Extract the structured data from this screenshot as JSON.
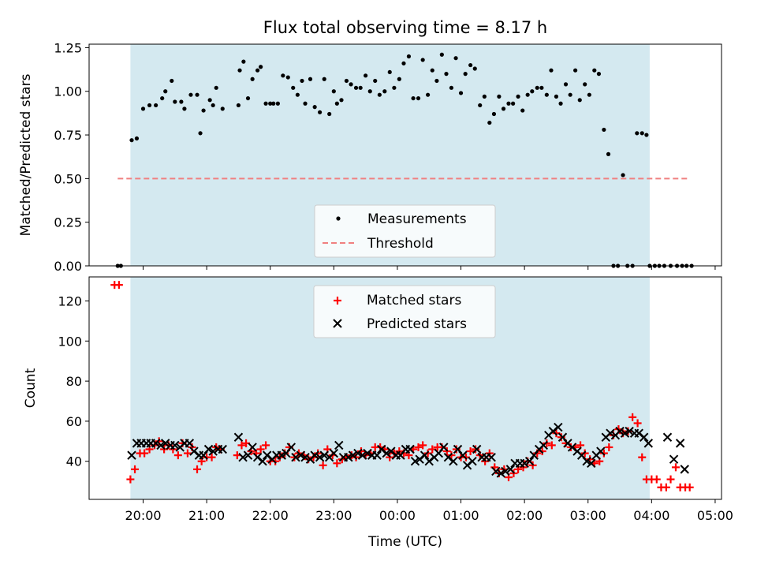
{
  "chart_data": [
    {
      "type": "scatter",
      "title": "Flux total observing time = 8.17 h",
      "ylabel": "Matched/Predicted stars",
      "ylim": [
        0,
        1.27
      ],
      "yticks": [
        0.0,
        0.25,
        0.5,
        0.75,
        1.0,
        1.25
      ],
      "ytick_labels": [
        "0.00",
        "0.25",
        "0.50",
        "0.75",
        "1.00",
        "1.25"
      ],
      "xlim_hours": [
        19.15,
        29.1
      ],
      "shaded_span_hours": [
        19.8,
        27.97
      ],
      "shade_color": "#d2e8ef",
      "legend_position": "lower center",
      "series": [
        {
          "name": "Measurements",
          "marker": "dot",
          "color": "#000000",
          "x": [
            19.6,
            19.65,
            19.82,
            19.9,
            20.0,
            20.1,
            20.2,
            20.3,
            20.35,
            20.45,
            20.5,
            20.6,
            20.65,
            20.75,
            20.85,
            20.9,
            20.95,
            21.05,
            21.1,
            21.15,
            21.25,
            21.5,
            21.52,
            21.58,
            21.65,
            21.72,
            21.8,
            21.85,
            21.93,
            22.0,
            22.05,
            22.12,
            22.2,
            22.28,
            22.36,
            22.43,
            22.5,
            22.55,
            22.63,
            22.7,
            22.78,
            22.85,
            22.93,
            23.0,
            23.05,
            23.12,
            23.2,
            23.27,
            23.35,
            23.42,
            23.5,
            23.57,
            23.65,
            23.72,
            23.8,
            23.88,
            23.95,
            24.03,
            24.1,
            24.18,
            24.25,
            24.33,
            24.4,
            24.48,
            24.55,
            24.62,
            24.7,
            24.77,
            24.85,
            24.92,
            25.0,
            25.07,
            25.15,
            25.22,
            25.3,
            25.37,
            25.45,
            25.52,
            25.6,
            25.67,
            25.75,
            25.82,
            25.9,
            25.97,
            26.05,
            26.12,
            26.2,
            26.27,
            26.35,
            26.42,
            26.5,
            26.57,
            26.65,
            26.72,
            26.8,
            26.87,
            26.95,
            27.02,
            27.1,
            27.17,
            27.25,
            27.32,
            27.4,
            27.47,
            27.55,
            27.62,
            27.7,
            27.77,
            27.85,
            27.92,
            27.97,
            28.05,
            28.12,
            28.2,
            28.3,
            28.4,
            28.48,
            28.55,
            28.63
          ],
          "y": [
            0.0,
            0.0,
            0.72,
            0.73,
            0.9,
            0.92,
            0.92,
            0.96,
            1.0,
            1.06,
            0.94,
            0.94,
            0.9,
            0.98,
            0.98,
            0.76,
            0.89,
            0.95,
            0.92,
            1.02,
            0.9,
            0.92,
            1.12,
            1.17,
            0.96,
            1.07,
            1.12,
            1.14,
            0.93,
            0.93,
            0.93,
            0.93,
            1.09,
            1.08,
            1.02,
            0.98,
            1.06,
            0.93,
            1.07,
            0.91,
            0.88,
            1.07,
            0.87,
            1.0,
            0.93,
            0.95,
            1.06,
            1.04,
            1.02,
            1.02,
            1.09,
            1.0,
            1.06,
            0.98,
            1.0,
            1.11,
            1.02,
            1.07,
            1.16,
            1.2,
            0.96,
            0.96,
            1.18,
            0.98,
            1.12,
            1.06,
            1.21,
            1.1,
            1.02,
            1.19,
            0.99,
            1.1,
            1.15,
            1.13,
            0.92,
            0.97,
            0.82,
            0.87,
            0.97,
            0.9,
            0.93,
            0.93,
            0.97,
            0.89,
            0.98,
            1.0,
            1.02,
            1.02,
            0.98,
            1.12,
            0.97,
            0.93,
            1.04,
            0.98,
            1.12,
            0.95,
            1.04,
            0.98,
            1.12,
            1.1,
            0.78,
            0.64,
            0.0,
            0.0,
            0.52,
            0.0,
            0.0,
            0.76,
            0.76,
            0.75,
            0.0,
            0.0,
            0.0,
            0.0,
            0.0,
            0.0,
            0.0,
            0.0,
            0.0
          ]
        },
        {
          "name": "Threshold",
          "marker": "dashed-line",
          "color": "#f08080",
          "x": [
            19.6,
            28.6
          ],
          "y": [
            0.5,
            0.5
          ]
        }
      ]
    },
    {
      "type": "scatter",
      "ylabel": "Count",
      "xlabel": "Time (UTC)",
      "ylim": [
        21,
        132
      ],
      "yticks": [
        40,
        60,
        80,
        100,
        120
      ],
      "ytick_labels": [
        "40",
        "60",
        "80",
        "100",
        "120"
      ],
      "xlim_hours": [
        19.15,
        29.1
      ],
      "xticks_hours": [
        20,
        21,
        22,
        23,
        24,
        25,
        26,
        27,
        28,
        29
      ],
      "xtick_labels": [
        "20:00",
        "21:00",
        "22:00",
        "23:00",
        "00:00",
        "01:00",
        "02:00",
        "03:00",
        "04:00",
        "05:00"
      ],
      "shaded_span_hours": [
        19.8,
        27.97
      ],
      "shade_color": "#d2e8ef",
      "legend_position": "upper center",
      "series": [
        {
          "name": "Matched stars",
          "marker": "plus",
          "color": "#ff0000",
          "x": [
            19.55,
            19.62,
            19.8,
            19.87,
            19.95,
            20.02,
            20.1,
            20.18,
            20.25,
            20.33,
            20.4,
            20.47,
            20.55,
            20.62,
            20.7,
            20.77,
            20.85,
            20.92,
            21.0,
            21.08,
            21.15,
            21.22,
            21.48,
            21.55,
            21.62,
            21.7,
            21.78,
            21.85,
            21.93,
            22.0,
            22.08,
            22.15,
            22.23,
            22.3,
            22.38,
            22.45,
            22.53,
            22.6,
            22.68,
            22.75,
            22.83,
            22.9,
            22.98,
            23.05,
            23.13,
            23.2,
            23.28,
            23.35,
            23.43,
            23.5,
            23.58,
            23.65,
            23.73,
            23.8,
            23.88,
            23.95,
            24.03,
            24.1,
            24.18,
            24.25,
            24.33,
            24.4,
            24.48,
            24.55,
            24.63,
            24.7,
            24.78,
            24.85,
            24.93,
            25.0,
            25.08,
            25.15,
            25.23,
            25.3,
            25.38,
            25.45,
            25.53,
            25.6,
            25.68,
            25.75,
            25.83,
            25.9,
            25.98,
            26.05,
            26.13,
            26.2,
            26.28,
            26.35,
            26.43,
            26.5,
            26.58,
            26.65,
            26.73,
            26.8,
            26.88,
            26.95,
            27.03,
            27.1,
            27.18,
            27.25,
            27.33,
            27.4,
            27.48,
            27.55,
            27.63,
            27.7,
            27.78,
            27.85,
            27.92,
            28.0,
            28.08,
            28.15,
            28.23,
            28.3,
            28.38,
            28.45,
            28.53,
            28.6
          ],
          "y": [
            128,
            128,
            31,
            36,
            44,
            44,
            46,
            48,
            50,
            46,
            48,
            46,
            43,
            49,
            44,
            47,
            36,
            40,
            42,
            42,
            47,
            46,
            43,
            48,
            49,
            45,
            44,
            46,
            48,
            40,
            40,
            42,
            44,
            47,
            42,
            44,
            43,
            41,
            42,
            44,
            38,
            46,
            43,
            39,
            41,
            42,
            43,
            42,
            45,
            43,
            44,
            47,
            47,
            46,
            42,
            44,
            45,
            44,
            43,
            46,
            47,
            48,
            44,
            46,
            47,
            47,
            45,
            43,
            46,
            42,
            42,
            45,
            46,
            43,
            40,
            44,
            37,
            34,
            36,
            32,
            34,
            36,
            37,
            40,
            38,
            44,
            45,
            49,
            48,
            54,
            52,
            49,
            47,
            47,
            48,
            44,
            41,
            39,
            40,
            44,
            47,
            53,
            56,
            54,
            55,
            62,
            59,
            42,
            31,
            31,
            31,
            27,
            27,
            31,
            37,
            27,
            27,
            27
          ]
        },
        {
          "name": "Predicted stars",
          "marker": "x",
          "color": "#000000",
          "x": [
            19.82,
            19.9,
            19.97,
            20.05,
            20.12,
            20.2,
            20.28,
            20.35,
            20.43,
            20.5,
            20.58,
            20.65,
            20.73,
            20.8,
            20.88,
            20.95,
            21.03,
            21.1,
            21.18,
            21.25,
            21.5,
            21.57,
            21.65,
            21.72,
            21.8,
            21.88,
            21.95,
            22.03,
            22.1,
            22.18,
            22.25,
            22.33,
            22.4,
            22.48,
            22.55,
            22.63,
            22.7,
            22.78,
            22.85,
            22.93,
            23.0,
            23.08,
            23.15,
            23.23,
            23.3,
            23.38,
            23.45,
            23.53,
            23.6,
            23.68,
            23.75,
            23.83,
            23.9,
            23.98,
            24.05,
            24.13,
            24.2,
            24.28,
            24.35,
            24.43,
            24.5,
            24.58,
            24.65,
            24.73,
            24.8,
            24.88,
            24.95,
            25.03,
            25.1,
            25.18,
            25.25,
            25.33,
            25.4,
            25.48,
            25.55,
            25.63,
            25.7,
            25.78,
            25.85,
            25.93,
            26.0,
            26.08,
            26.15,
            26.23,
            26.3,
            26.38,
            26.45,
            26.53,
            26.6,
            26.68,
            26.75,
            26.83,
            26.9,
            26.98,
            27.05,
            27.13,
            27.2,
            27.28,
            27.35,
            27.43,
            27.5,
            27.58,
            27.65,
            27.73,
            27.8,
            27.88,
            27.95,
            28.25,
            28.35,
            28.45,
            28.52
          ],
          "y": [
            43,
            49,
            49,
            49,
            49,
            49,
            48,
            49,
            48,
            48,
            47,
            49,
            49,
            45,
            43,
            43,
            46,
            45,
            46,
            46,
            52,
            42,
            43,
            47,
            42,
            40,
            43,
            41,
            43,
            43,
            44,
            47,
            42,
            43,
            42,
            41,
            43,
            42,
            43,
            42,
            44,
            48,
            42,
            42,
            43,
            44,
            43,
            44,
            43,
            43,
            46,
            44,
            45,
            43,
            43,
            46,
            46,
            40,
            41,
            43,
            40,
            42,
            44,
            47,
            42,
            40,
            46,
            43,
            38,
            40,
            46,
            42,
            42,
            42,
            35,
            34,
            35,
            36,
            39,
            39,
            39,
            40,
            43,
            46,
            48,
            53,
            55,
            57,
            52,
            49,
            47,
            45,
            43,
            40,
            39,
            43,
            45,
            52,
            54,
            53,
            55,
            54,
            55,
            54,
            54,
            52,
            49,
            52,
            41,
            49,
            36
          ]
        }
      ]
    }
  ]
}
